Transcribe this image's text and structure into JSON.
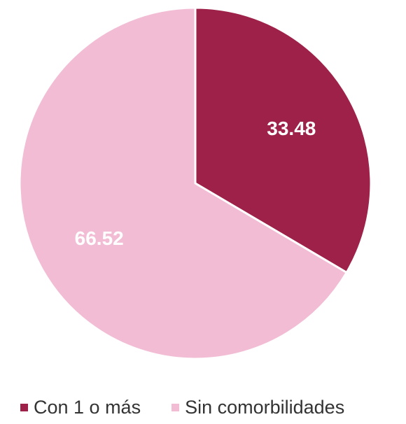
{
  "chart_data": {
    "type": "pie",
    "title": "",
    "categories": [
      "Con 1 o más",
      "Sin comorbilidades"
    ],
    "values": [
      33.48,
      66.52
    ],
    "data_labels": [
      "33.48",
      "66.52"
    ],
    "colors": [
      "#9e2149",
      "#f2bcd4"
    ],
    "start_angle": "12 o'clock",
    "direction": "clockwise",
    "legend_position": "bottom"
  },
  "legend": {
    "items": [
      {
        "label": "Con 1 o más",
        "color": "#9e2149"
      },
      {
        "label": "Sin comorbilidades",
        "color": "#f2bcd4"
      }
    ]
  }
}
